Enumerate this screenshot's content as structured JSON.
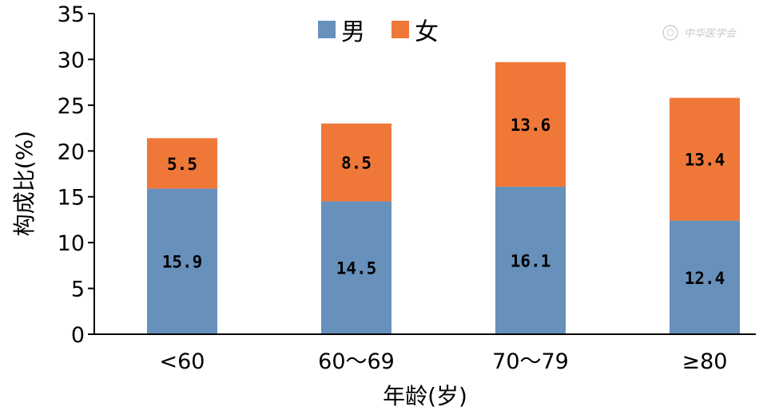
{
  "chart_data": {
    "type": "bar",
    "stacked": true,
    "categories": [
      "<60",
      "60～69",
      "70～79",
      "≥80"
    ],
    "series": [
      {
        "name": "男",
        "color": "#6790bb",
        "values": [
          15.9,
          14.5,
          16.1,
          12.4
        ]
      },
      {
        "name": "女",
        "color": "#ef7839",
        "values": [
          5.5,
          8.5,
          13.6,
          13.4
        ]
      }
    ],
    "value_labels": [
      [
        "15.9",
        "14.5",
        "16.1",
        "12.4"
      ],
      [
        "5.5",
        "8.5",
        "13.6",
        "13.4"
      ]
    ],
    "title": "",
    "xlabel": "年龄(岁)",
    "ylabel": "构成比(%)",
    "ylim": [
      0,
      35
    ],
    "yticks": [
      "0",
      "5",
      "10",
      "15",
      "20",
      "25",
      "30",
      "35"
    ],
    "ytick_values": [
      0,
      5,
      10,
      15,
      20,
      25,
      30,
      35
    ],
    "grid": false,
    "legend_position": "top-center",
    "watermark": "中华医学会"
  }
}
